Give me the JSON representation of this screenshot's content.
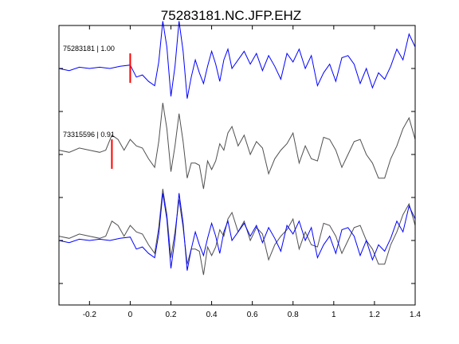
{
  "chart_data": {
    "type": "line",
    "title": "75283181.NC.JFP.EHZ",
    "xlim": [
      -0.35,
      1.4
    ],
    "xticks": [
      -0.2,
      0,
      0.2,
      0.4,
      0.6,
      0.8,
      1,
      1.2,
      1.4
    ],
    "xtick_labels": [
      "-0.2",
      "0",
      "0.2",
      "0.4",
      "0.6",
      "0.8",
      "1",
      "1.2",
      "1.4"
    ],
    "ylim": [
      0,
      6.5
    ],
    "yticks": [
      0.5,
      1.5,
      2.5,
      3.5,
      4.5,
      5.5
    ],
    "grid": false,
    "colors": {
      "master": "#0000ff",
      "other": "#505050",
      "pick": "#ff0000",
      "axes": "#000000"
    },
    "traces": [
      {
        "label": "75283181 | 1.00",
        "offset": 5.5,
        "color": "#0000ff",
        "pick_time": 0.0,
        "x": [
          -0.35,
          -0.3,
          -0.25,
          -0.2,
          -0.15,
          -0.1,
          -0.05,
          0.0,
          0.03,
          0.06,
          0.09,
          0.12,
          0.14,
          0.16,
          0.18,
          0.2,
          0.22,
          0.24,
          0.26,
          0.28,
          0.3,
          0.32,
          0.34,
          0.36,
          0.38,
          0.4,
          0.42,
          0.44,
          0.46,
          0.48,
          0.5,
          0.53,
          0.56,
          0.59,
          0.62,
          0.65,
          0.68,
          0.71,
          0.74,
          0.77,
          0.8,
          0.83,
          0.86,
          0.89,
          0.92,
          0.95,
          0.98,
          1.01,
          1.04,
          1.07,
          1.1,
          1.13,
          1.16,
          1.19,
          1.22,
          1.25,
          1.28,
          1.31,
          1.34,
          1.37,
          1.4
        ],
        "y": [
          0.0,
          -0.05,
          0.03,
          0.0,
          0.03,
          0.0,
          0.05,
          0.08,
          -0.2,
          -0.15,
          -0.3,
          -0.4,
          0.15,
          1.1,
          0.5,
          -0.65,
          0.05,
          1.1,
          0.4,
          -0.7,
          -0.2,
          0.2,
          -0.1,
          -0.35,
          0.05,
          0.4,
          0.1,
          -0.3,
          0.2,
          0.45,
          0.0,
          0.2,
          0.4,
          0.1,
          0.35,
          -0.05,
          0.3,
          0.05,
          -0.25,
          0.35,
          0.15,
          0.45,
          0.0,
          0.3,
          -0.4,
          -0.1,
          0.1,
          -0.3,
          0.25,
          0.3,
          0.1,
          -0.35,
          0.0,
          -0.45,
          -0.1,
          -0.25,
          0.05,
          0.45,
          0.2,
          0.8,
          0.5
        ]
      },
      {
        "label": "73315596 | 0.91",
        "offset": 3.5,
        "color": "#505050",
        "pick_time": -0.09,
        "x": [
          -0.35,
          -0.3,
          -0.25,
          -0.2,
          -0.15,
          -0.12,
          -0.09,
          -0.06,
          -0.03,
          0.0,
          0.03,
          0.06,
          0.09,
          0.12,
          0.14,
          0.16,
          0.18,
          0.2,
          0.22,
          0.24,
          0.26,
          0.28,
          0.3,
          0.32,
          0.34,
          0.36,
          0.38,
          0.4,
          0.42,
          0.44,
          0.46,
          0.48,
          0.5,
          0.53,
          0.56,
          0.59,
          0.62,
          0.65,
          0.68,
          0.71,
          0.74,
          0.77,
          0.8,
          0.83,
          0.86,
          0.89,
          0.92,
          0.95,
          0.98,
          1.01,
          1.04,
          1.07,
          1.1,
          1.13,
          1.16,
          1.19,
          1.22,
          1.25,
          1.28,
          1.31,
          1.34,
          1.37,
          1.4
        ],
        "y": [
          0.1,
          0.05,
          0.15,
          0.1,
          0.05,
          0.1,
          0.45,
          0.35,
          0.1,
          0.35,
          0.2,
          0.15,
          -0.1,
          -0.3,
          0.3,
          1.2,
          0.6,
          -0.4,
          0.2,
          0.95,
          0.3,
          -0.55,
          -0.2,
          -0.2,
          -0.25,
          -0.8,
          -0.15,
          -0.35,
          -0.15,
          0.25,
          0.1,
          0.5,
          0.65,
          0.2,
          0.45,
          0.0,
          0.3,
          0.15,
          -0.45,
          -0.1,
          0.1,
          0.25,
          0.5,
          -0.2,
          0.2,
          -0.1,
          -0.15,
          0.4,
          0.35,
          0.1,
          -0.3,
          0.0,
          0.3,
          0.35,
          0.0,
          -0.2,
          -0.55,
          -0.55,
          -0.1,
          0.2,
          0.6,
          0.85,
          0.35
        ]
      }
    ]
  }
}
